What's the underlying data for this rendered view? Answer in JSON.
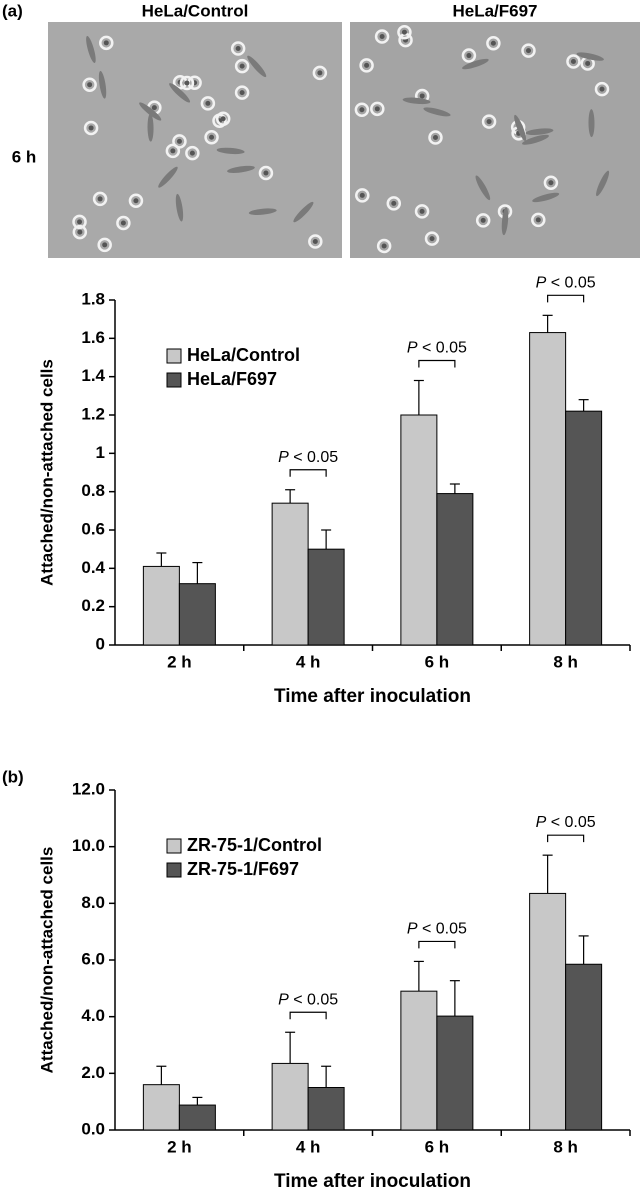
{
  "images": {
    "titles": [
      "HeLa/Control",
      "HeLa/F697"
    ],
    "row_label": "6 h"
  },
  "chart_data": [
    {
      "type": "bar",
      "panel_label": "(a)",
      "ylabel": "Attached/non-attached  cells",
      "xlabel": "Time after inoculation",
      "categories": [
        "2 h",
        "4 h",
        "6 h",
        "8 h"
      ],
      "series": [
        {
          "name": "HeLa/Control",
          "color": "#c8c8c8",
          "values": [
            0.41,
            0.74,
            1.2,
            1.63
          ],
          "errors": [
            0.07,
            0.07,
            0.18,
            0.09
          ]
        },
        {
          "name": "HeLa/F697",
          "color": "#555555",
          "values": [
            0.32,
            0.5,
            0.79,
            1.22
          ],
          "errors": [
            0.11,
            0.1,
            0.05,
            0.06
          ]
        }
      ],
      "significance": [
        null,
        "P < 0.05",
        "P < 0.05",
        "P < 0.05"
      ],
      "ylim": [
        0,
        1.8
      ],
      "yticks": [
        0,
        0.2,
        0.4,
        0.6,
        0.8,
        1,
        1.2,
        1.4,
        1.6,
        1.8
      ],
      "grid": false,
      "legend": "upper left"
    },
    {
      "type": "bar",
      "panel_label": "(b)",
      "ylabel": "Attached/non-attached  cells",
      "xlabel": "Time after inoculation",
      "categories": [
        "2 h",
        "4 h",
        "6 h",
        "8 h"
      ],
      "series": [
        {
          "name": "ZR-75-1/Control",
          "color": "#c8c8c8",
          "values": [
            1.6,
            2.35,
            4.9,
            8.35
          ],
          "errors": [
            0.65,
            1.1,
            1.05,
            1.35
          ]
        },
        {
          "name": "ZR-75-1/F697",
          "color": "#555555",
          "values": [
            0.88,
            1.5,
            4.02,
            5.85
          ],
          "errors": [
            0.27,
            0.75,
            1.25,
            1.0
          ]
        }
      ],
      "significance": [
        null,
        "P < 0.05",
        "P < 0.05",
        "P < 0.05"
      ],
      "ylim": [
        0,
        12
      ],
      "yticks": [
        {
          "value": 0,
          "label": "0.0"
        },
        {
          "value": 2,
          "label": "2.0"
        },
        {
          "value": 4,
          "label": "4.0"
        },
        {
          "value": 6,
          "label": "6.0"
        },
        {
          "value": 8,
          "label": "8.0"
        },
        {
          "value": 10,
          "label": "10.0"
        },
        {
          "value": 12,
          "label": "12.0"
        }
      ],
      "grid": false,
      "legend": "upper left"
    }
  ]
}
